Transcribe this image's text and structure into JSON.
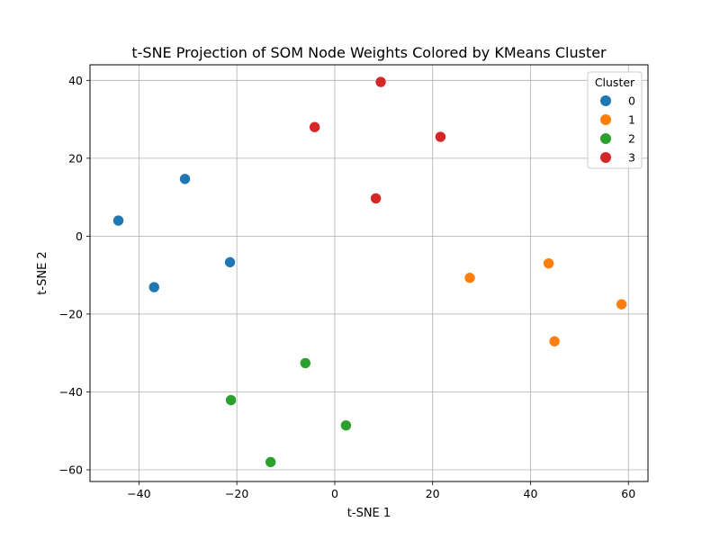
{
  "chart_data": {
    "type": "scatter",
    "title": "t-SNE Projection of SOM Node Weights Colored by KMeans Cluster",
    "xlabel": "t-SNE 1",
    "ylabel": "t-SNE 2",
    "xlim": [
      -50,
      64
    ],
    "ylim": [
      -63,
      44
    ],
    "xticks": [
      -40,
      -20,
      0,
      20,
      40,
      60
    ],
    "yticks": [
      -60,
      -40,
      -20,
      0,
      20,
      40
    ],
    "grid": true,
    "legend": {
      "title": "Cluster",
      "placement": "top-right"
    },
    "series": [
      {
        "name": "0",
        "color": "#1f77b4",
        "points": [
          [
            -44.2,
            4.0
          ],
          [
            -30.6,
            14.7
          ],
          [
            -36.9,
            -13.1
          ],
          [
            -21.4,
            -6.7
          ]
        ]
      },
      {
        "name": "1",
        "color": "#ff7f0e",
        "points": [
          [
            27.6,
            -10.7
          ],
          [
            43.7,
            -7.0
          ],
          [
            44.9,
            -27.0
          ],
          [
            58.6,
            -17.5
          ]
        ]
      },
      {
        "name": "2",
        "color": "#2ca02c",
        "points": [
          [
            -6.0,
            -32.6
          ],
          [
            -21.2,
            -42.1
          ],
          [
            -13.1,
            -58.0
          ],
          [
            2.3,
            -48.6
          ]
        ]
      },
      {
        "name": "3",
        "color": "#d62728",
        "points": [
          [
            -4.1,
            28.0
          ],
          [
            9.4,
            39.6
          ],
          [
            21.6,
            25.5
          ],
          [
            8.4,
            9.7
          ]
        ]
      }
    ]
  }
}
